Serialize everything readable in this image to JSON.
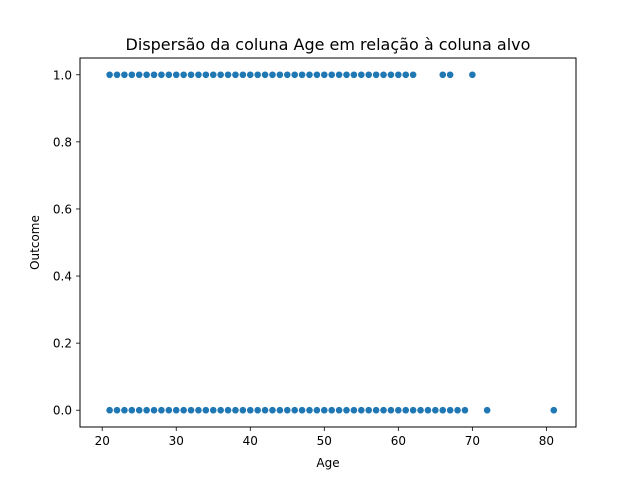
{
  "chart_data": {
    "type": "scatter",
    "title": "Dispersão da coluna Age em relação à coluna alvo",
    "xlabel": "Age",
    "ylabel": "Outcome",
    "xlim": [
      17,
      84
    ],
    "ylim": [
      -0.05,
      1.05
    ],
    "xticks": [
      20,
      30,
      40,
      50,
      60,
      70,
      80
    ],
    "yticks": [
      0.0,
      0.2,
      0.4,
      0.6,
      0.8,
      1.0
    ],
    "xtick_labels": [
      "20",
      "30",
      "40",
      "50",
      "60",
      "70",
      "80"
    ],
    "ytick_labels": [
      "0.0",
      "0.2",
      "0.4",
      "0.6",
      "0.8",
      "1.0"
    ],
    "grid": false,
    "marker_color": "#1f77b4",
    "marker_edge_color": "#ffffff",
    "series": [
      {
        "x": [
          21,
          22,
          23,
          24,
          25,
          26,
          27,
          28,
          29,
          30,
          31,
          32,
          33,
          34,
          35,
          36,
          37,
          38,
          39,
          40,
          41,
          42,
          43,
          44,
          45,
          46,
          47,
          48,
          49,
          50,
          51,
          52,
          53,
          54,
          55,
          56,
          57,
          58,
          59,
          60,
          61,
          62,
          63,
          64,
          65,
          66,
          67,
          68,
          69,
          72,
          81,
          21,
          22,
          23,
          24,
          25,
          26,
          27,
          28,
          29,
          30,
          31,
          32,
          33,
          34,
          35,
          36,
          37,
          38,
          39,
          40,
          41,
          42,
          43,
          44,
          45,
          46,
          47,
          48,
          49,
          50,
          51,
          52,
          53,
          54,
          55,
          56,
          57,
          58,
          59,
          60,
          61,
          62,
          66,
          67,
          70
        ],
        "y": [
          0,
          0,
          0,
          0,
          0,
          0,
          0,
          0,
          0,
          0,
          0,
          0,
          0,
          0,
          0,
          0,
          0,
          0,
          0,
          0,
          0,
          0,
          0,
          0,
          0,
          0,
          0,
          0,
          0,
          0,
          0,
          0,
          0,
          0,
          0,
          0,
          0,
          0,
          0,
          0,
          0,
          0,
          0,
          0,
          0,
          0,
          0,
          0,
          0,
          0,
          0,
          1,
          1,
          1,
          1,
          1,
          1,
          1,
          1,
          1,
          1,
          1,
          1,
          1,
          1,
          1,
          1,
          1,
          1,
          1,
          1,
          1,
          1,
          1,
          1,
          1,
          1,
          1,
          1,
          1,
          1,
          1,
          1,
          1,
          1,
          1,
          1,
          1,
          1,
          1,
          1,
          1,
          1,
          1,
          1,
          1
        ]
      }
    ]
  }
}
